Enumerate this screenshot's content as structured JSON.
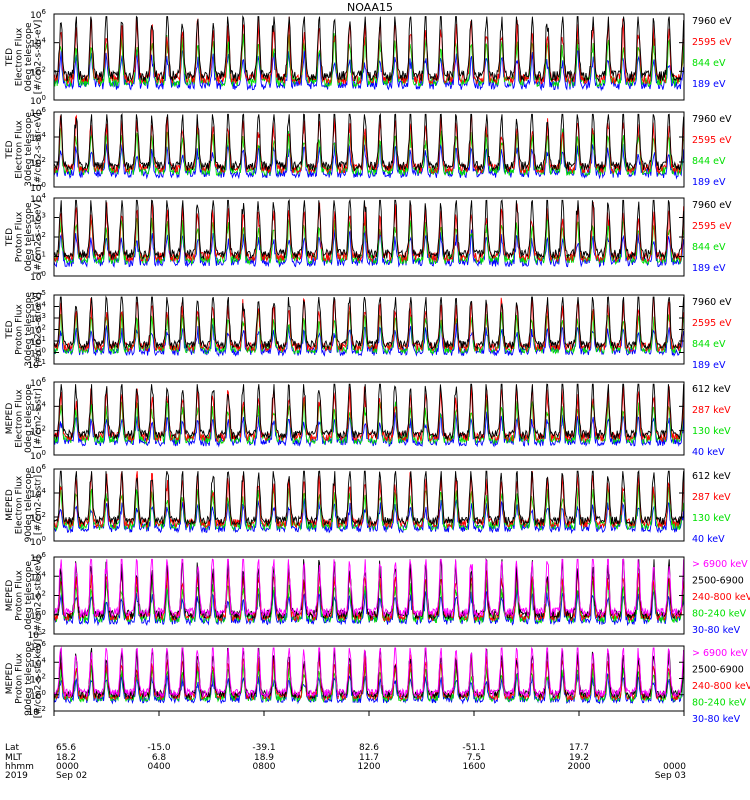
{
  "chart_data": {
    "type": "line",
    "title": "NOAA15",
    "x_range": [
      "2019-09-02 00:00",
      "2019-09-03 00:00"
    ],
    "panels": [
      {
        "ylabel": [
          "TED",
          "Electron Flux",
          "0deg telescope",
          "[#/cm2-s-str-eV]"
        ],
        "yscale": "log",
        "ylim": [
          1,
          1000000
        ],
        "ticks": [
          {
            "t": "10",
            "s": "0"
          },
          {
            "t": "10",
            "s": "2"
          },
          {
            "t": "10",
            "s": "4"
          },
          {
            "t": "10",
            "s": "6"
          }
        ],
        "series": [
          {
            "name": "7960 eV",
            "color": "#000000"
          },
          {
            "name": "2595 eV",
            "color": "#ff0000"
          },
          {
            "name": "844 eV",
            "color": "#00e000"
          },
          {
            "name": "189 eV",
            "color": "#0000ff"
          }
        ]
      },
      {
        "ylabel": [
          "TED",
          "Electron Flux",
          "30deg telescope",
          "[#/cm2-s-str-eV]"
        ],
        "yscale": "log",
        "ylim": [
          1,
          1000000
        ],
        "ticks": [
          {
            "t": "10",
            "s": "0"
          },
          {
            "t": "10",
            "s": "2"
          },
          {
            "t": "10",
            "s": "4"
          },
          {
            "t": "10",
            "s": "6"
          }
        ],
        "series": [
          {
            "name": "7960 eV",
            "color": "#000000"
          },
          {
            "name": "2595 eV",
            "color": "#ff0000"
          },
          {
            "name": "844 eV",
            "color": "#00e000"
          },
          {
            "name": "189 eV",
            "color": "#0000ff"
          }
        ]
      },
      {
        "ylabel": [
          "TED",
          "Proton Flux",
          "0deg telescope",
          "[#/cm2-s-str-eV]"
        ],
        "yscale": "log",
        "ylim": [
          1,
          10000
        ],
        "ticks": [
          {
            "t": "10",
            "s": "0"
          },
          {
            "t": "10",
            "s": "1"
          },
          {
            "t": "10",
            "s": "2"
          },
          {
            "t": "10",
            "s": "3"
          },
          {
            "t": "10",
            "s": "4"
          }
        ],
        "series": [
          {
            "name": "7960 eV",
            "color": "#000000"
          },
          {
            "name": "2595 eV",
            "color": "#ff0000"
          },
          {
            "name": "844 eV",
            "color": "#00e000"
          },
          {
            "name": "189 eV",
            "color": "#0000ff"
          }
        ]
      },
      {
        "ylabel": [
          "TED",
          "Proton Flux",
          "30deg telescope",
          "[#/cm2-s-str-eV]"
        ],
        "yscale": "log",
        "ylim": [
          0.1,
          100000
        ],
        "ticks": [
          {
            "t": "10",
            "s": "-1"
          },
          {
            "t": "10",
            "s": "0"
          },
          {
            "t": "10",
            "s": "1"
          },
          {
            "t": "10",
            "s": "2"
          },
          {
            "t": "10",
            "s": "3"
          },
          {
            "t": "10",
            "s": "4"
          },
          {
            "t": "10",
            "s": "5"
          }
        ],
        "series": [
          {
            "name": "7960 eV",
            "color": "#000000"
          },
          {
            "name": "2595 eV",
            "color": "#ff0000"
          },
          {
            "name": "844 eV",
            "color": "#00e000"
          },
          {
            "name": "189 eV",
            "color": "#0000ff"
          }
        ]
      },
      {
        "ylabel": [
          "MEPED",
          "Electron Flux",
          "0deg telescope",
          "[#/cm2-s-str]"
        ],
        "yscale": "log",
        "ylim": [
          1,
          1000000
        ],
        "ticks": [
          {
            "t": "10",
            "s": "0"
          },
          {
            "t": "10",
            "s": "2"
          },
          {
            "t": "10",
            "s": "4"
          },
          {
            "t": "10",
            "s": "6"
          }
        ],
        "series": [
          {
            "name": "612 keV",
            "color": "#000000"
          },
          {
            "name": "287 keV",
            "color": "#ff0000"
          },
          {
            "name": "130 keV",
            "color": "#00e000"
          },
          {
            "name": "40 keV",
            "color": "#0000ff"
          }
        ]
      },
      {
        "ylabel": [
          "MEPED",
          "Electron Flux",
          "90deg telescope",
          "[#/cm2-s-str]"
        ],
        "yscale": "log",
        "ylim": [
          1,
          1000000
        ],
        "ticks": [
          {
            "t": "10",
            "s": "0"
          },
          {
            "t": "10",
            "s": "2"
          },
          {
            "t": "10",
            "s": "4"
          },
          {
            "t": "10",
            "s": "6"
          }
        ],
        "series": [
          {
            "name": "612 keV",
            "color": "#000000"
          },
          {
            "name": "287 keV",
            "color": "#ff0000"
          },
          {
            "name": "130 keV",
            "color": "#00e000"
          },
          {
            "name": "40 keV",
            "color": "#0000ff"
          }
        ]
      },
      {
        "ylabel": [
          "MEPED",
          "Proton Flux",
          "0deg telescope",
          "[#/cm2-s-str-keV]"
        ],
        "yscale": "log",
        "ylim": [
          0.01,
          1000000
        ],
        "ticks": [
          {
            "t": "10",
            "s": "-2"
          },
          {
            "t": "10",
            "s": "0"
          },
          {
            "t": "10",
            "s": "2"
          },
          {
            "t": "10",
            "s": "4"
          },
          {
            "t": "10",
            "s": "6"
          }
        ],
        "series": [
          {
            "name": "> 6900 keV",
            "color": "#ff00ff"
          },
          {
            "name": "2500-6900",
            "color": "#000000"
          },
          {
            "name": "240-800 keV",
            "color": "#ff0000"
          },
          {
            "name": "80-240 keV",
            "color": "#00e000"
          },
          {
            "name": "30-80 keV",
            "color": "#0000ff"
          }
        ]
      },
      {
        "ylabel": [
          "MEPED",
          "Proton Flux",
          "90deg telescope",
          "[#/cm2-s-str-keV]"
        ],
        "yscale": "log",
        "ylim": [
          0.01,
          1000000
        ],
        "ticks": [
          {
            "t": "10",
            "s": "-2"
          },
          {
            "t": "10",
            "s": "0"
          },
          {
            "t": "10",
            "s": "2"
          },
          {
            "t": "10",
            "s": "4"
          },
          {
            "t": "10",
            "s": "6"
          }
        ],
        "series": [
          {
            "name": "> 6900 keV",
            "color": "#ff00ff"
          },
          {
            "name": "2500-6900",
            "color": "#000000"
          },
          {
            "name": "240-800 keV",
            "color": "#ff0000"
          },
          {
            "name": "80-240 keV",
            "color": "#00e000"
          },
          {
            "name": "30-80 keV",
            "color": "#0000ff"
          }
        ]
      }
    ],
    "x_axis": {
      "row_labels": [
        "Lat",
        "MLT",
        "hhmm",
        "2019"
      ],
      "ticks": [
        {
          "time": "0000",
          "lat": "65.6",
          "mlt": "18.2",
          "date": "Sep 02"
        },
        {
          "time": "0400",
          "lat": "-15.0",
          "mlt": "6.8",
          "date": ""
        },
        {
          "time": "0800",
          "lat": "-39.1",
          "mlt": "18.9",
          "date": ""
        },
        {
          "time": "1200",
          "lat": "82.6",
          "mlt": "11.7",
          "date": ""
        },
        {
          "time": "1600",
          "lat": "-51.1",
          "mlt": "7.5",
          "date": ""
        },
        {
          "time": "2000",
          "lat": "17.7",
          "mlt": "19.2",
          "date": ""
        },
        {
          "time": "0000",
          "lat": "",
          "mlt": "",
          "date": "Sep 03"
        }
      ]
    }
  }
}
